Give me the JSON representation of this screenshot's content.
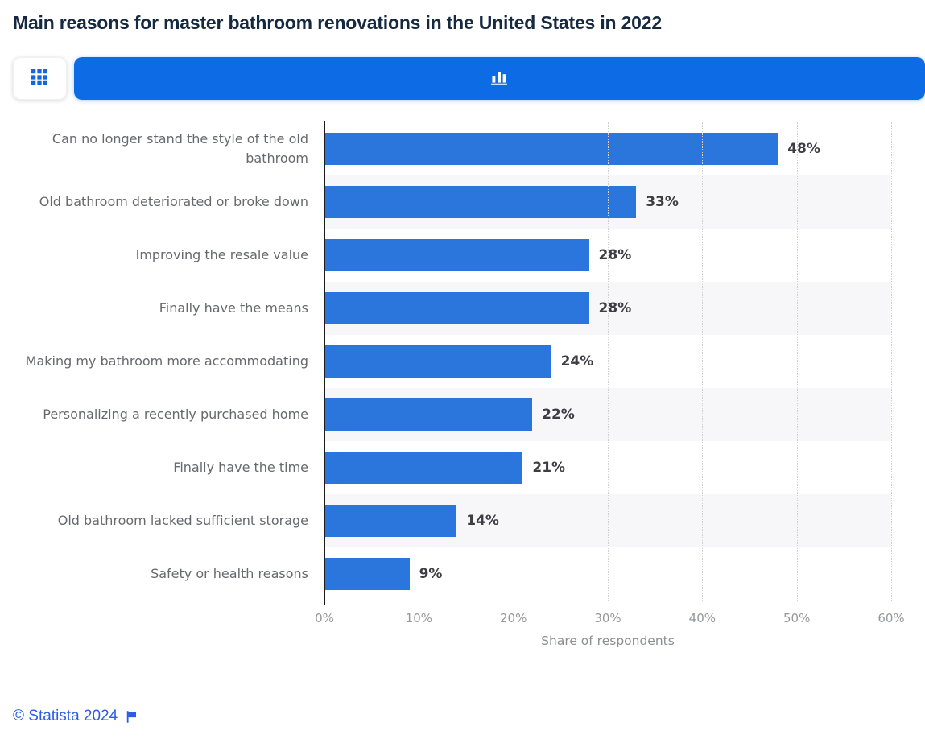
{
  "header": {
    "title": "Main reasons for master bathroom renovations in the United States in 2022"
  },
  "toolbar": {
    "buttons": [
      {
        "name": "table-view",
        "icon": "grid-icon",
        "active": false
      },
      {
        "name": "chart-view",
        "icon": "bar-chart-icon",
        "active": true
      }
    ]
  },
  "chart_data": {
    "type": "bar",
    "orientation": "horizontal",
    "title": "Main reasons for master bathroom renovations in the United States in 2022",
    "categories": [
      "Can no longer stand the style of the old bathroom",
      "Old bathroom deteriorated or broke down",
      "Improving the resale value",
      "Finally have the means",
      "Making my bathroom more accommodating",
      "Personalizing a recently purchased home",
      "Finally have the time",
      "Old bathroom lacked sufficient storage",
      "Safety or health reasons"
    ],
    "values": [
      48,
      33,
      28,
      28,
      24,
      22,
      21,
      14,
      9
    ],
    "value_labels": [
      "48%",
      "33%",
      "28%",
      "28%",
      "24%",
      "22%",
      "21%",
      "14%",
      "9%"
    ],
    "unit": "%",
    "xlabel": "Share of respondents",
    "ylabel": "",
    "xlim": [
      0,
      60
    ],
    "xticks": [
      0,
      10,
      20,
      30,
      40,
      50,
      60
    ],
    "xtick_labels": [
      "0%",
      "10%",
      "20%",
      "30%",
      "40%",
      "50%",
      "60%"
    ],
    "grid": true,
    "gridline_style": "dotted",
    "legend": false,
    "bar_color": "#2b76dd",
    "band_color": "#f7f7f9"
  },
  "colors": {
    "accent_blue": "#0d6be5",
    "bar_blue": "#2b76dd",
    "title_navy": "#152940",
    "link_blue": "#2b5ce4"
  },
  "footer": {
    "copyright": "© Statista 2024",
    "flag_icon": "flag-icon"
  }
}
